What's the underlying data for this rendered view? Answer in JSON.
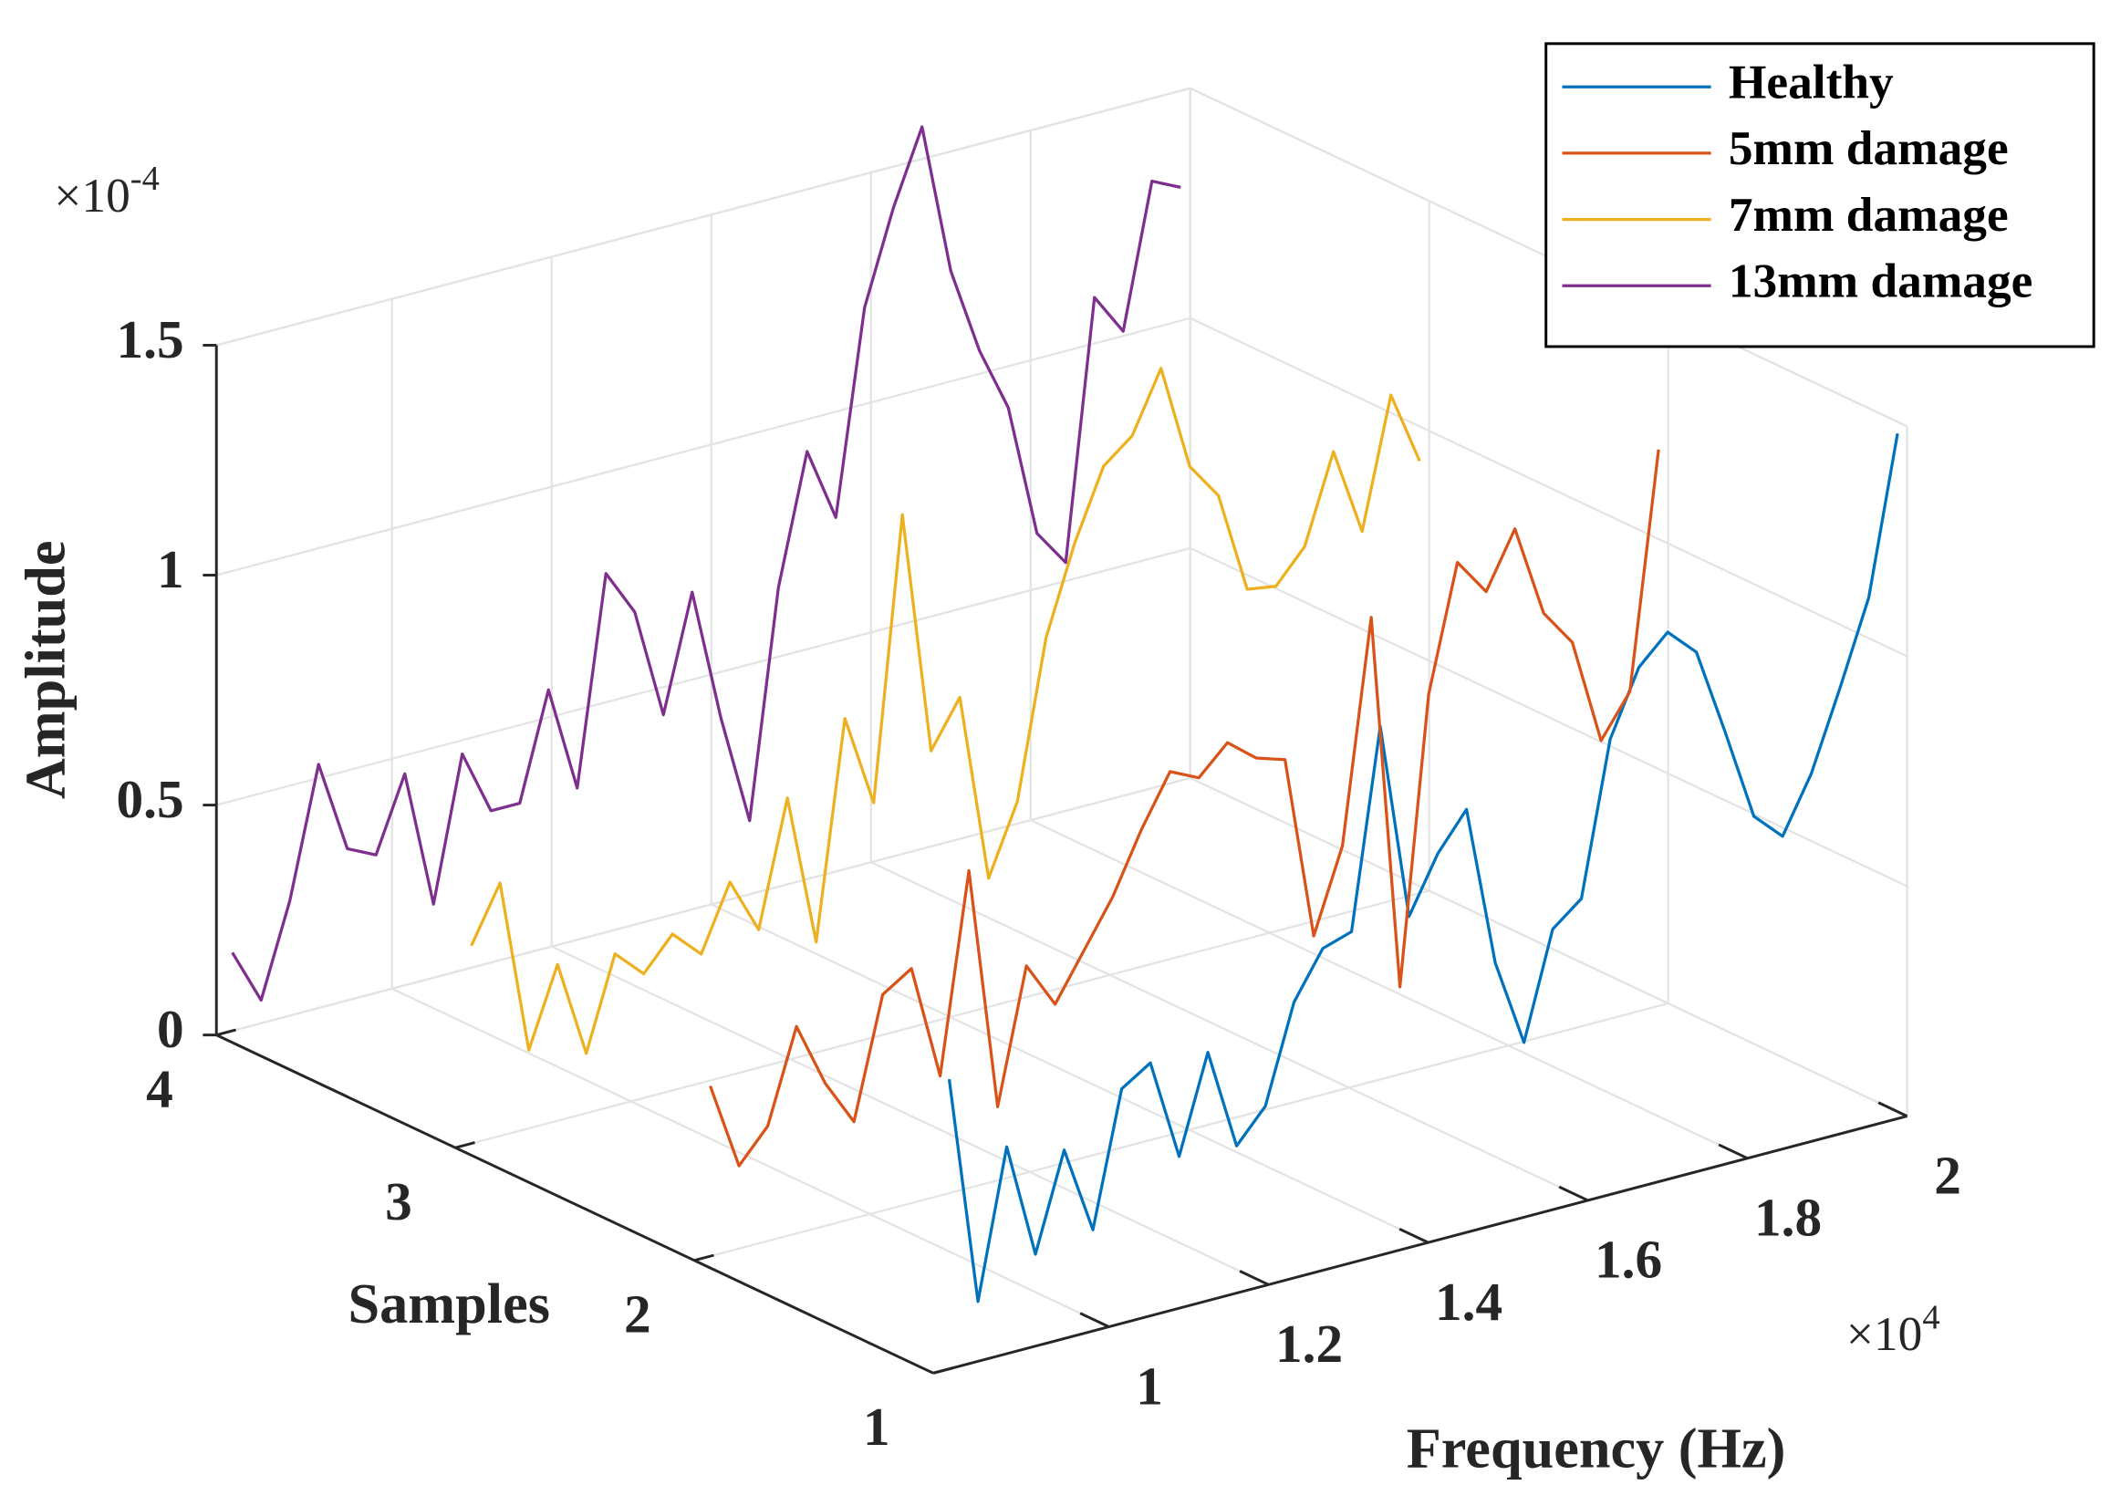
{
  "chart_data": {
    "type": "line3d",
    "xlabel": "Frequency (Hz)",
    "ylabel": "Samples",
    "zlabel": "Amplitude",
    "x_exponent": {
      "base": "×10",
      "power": "4"
    },
    "z_exponent": {
      "base": "×10",
      "power": "-4"
    },
    "x": [
      0.8,
      0.836,
      0.872,
      0.908,
      0.944,
      0.98,
      1.016,
      1.052,
      1.088,
      1.124,
      1.16,
      1.196,
      1.232,
      1.268,
      1.304,
      1.34,
      1.376,
      1.412,
      1.448,
      1.484,
      1.52,
      1.556,
      1.592,
      1.628,
      1.664,
      1.7,
      1.736,
      1.772,
      1.808,
      1.844,
      1.88,
      1.916,
      1.952,
      1.988
    ],
    "series": [
      {
        "name": "Healthy",
        "color": "#0072bd",
        "sample": 1,
        "values": [
          0.63,
          0.13,
          0.45,
          0.2,
          0.41,
          0.22,
          0.51,
          0.55,
          0.33,
          0.54,
          0.32,
          0.39,
          0.6,
          0.7,
          0.72,
          1.15,
          0.72,
          0.84,
          0.92,
          0.57,
          0.38,
          0.61,
          0.66,
          0.99,
          1.13,
          1.19,
          1.13,
          0.94,
          0.74,
          0.68,
          0.8,
          0.97,
          1.15,
          1.49
        ]
      },
      {
        "name": "5mm damage",
        "color": "#d95319",
        "sample": 2,
        "values": [
          0.37,
          0.18,
          0.25,
          0.45,
          0.31,
          0.21,
          0.47,
          0.51,
          0.26,
          0.69,
          0.16,
          0.45,
          0.35,
          0.45,
          0.55,
          0.68,
          0.79,
          0.76,
          0.82,
          0.77,
          0.75,
          0.35,
          0.53,
          1.01,
          0.19,
          0.81,
          1.08,
          1.0,
          1.12,
          0.92,
          0.84,
          0.61,
          0.7,
          1.21
        ]
      },
      {
        "name": "7mm damage",
        "color": "#edb120",
        "sample": 3,
        "values": [
          0.43,
          0.55,
          0.17,
          0.34,
          0.13,
          0.33,
          0.27,
          0.34,
          0.28,
          0.42,
          0.3,
          0.57,
          0.24,
          0.71,
          0.51,
          1.12,
          0.59,
          0.69,
          0.28,
          0.43,
          0.77,
          0.96,
          1.11,
          1.16,
          1.29,
          1.06,
          0.98,
          0.76,
          0.75,
          0.82,
          1.01,
          0.82,
          1.1,
          0.94
        ]
      },
      {
        "name": "13mm damage",
        "color": "#7e2f8e",
        "sample": 4,
        "values": [
          0.17,
          0.05,
          0.25,
          0.53,
          0.33,
          0.3,
          0.46,
          0.16,
          0.47,
          0.33,
          0.33,
          0.56,
          0.33,
          0.78,
          0.68,
          0.44,
          0.69,
          0.4,
          0.16,
          0.65,
          0.93,
          0.77,
          1.21,
          1.41,
          1.57,
          1.24,
          1.05,
          0.91,
          0.62,
          0.54,
          1.1,
          1.01,
          1.32,
          1.29
        ]
      }
    ],
    "xlim": [
      0.78,
      2
    ],
    "xticks": [
      1,
      1.2,
      1.4,
      1.6,
      1.8,
      2
    ],
    "ylim": [
      1,
      4
    ],
    "yticks": [
      1,
      2,
      3,
      4
    ],
    "zlim": [
      0,
      1.5
    ],
    "zticks": [
      0,
      0.5,
      1,
      1.5
    ],
    "grid": true,
    "legend": "northeast"
  }
}
